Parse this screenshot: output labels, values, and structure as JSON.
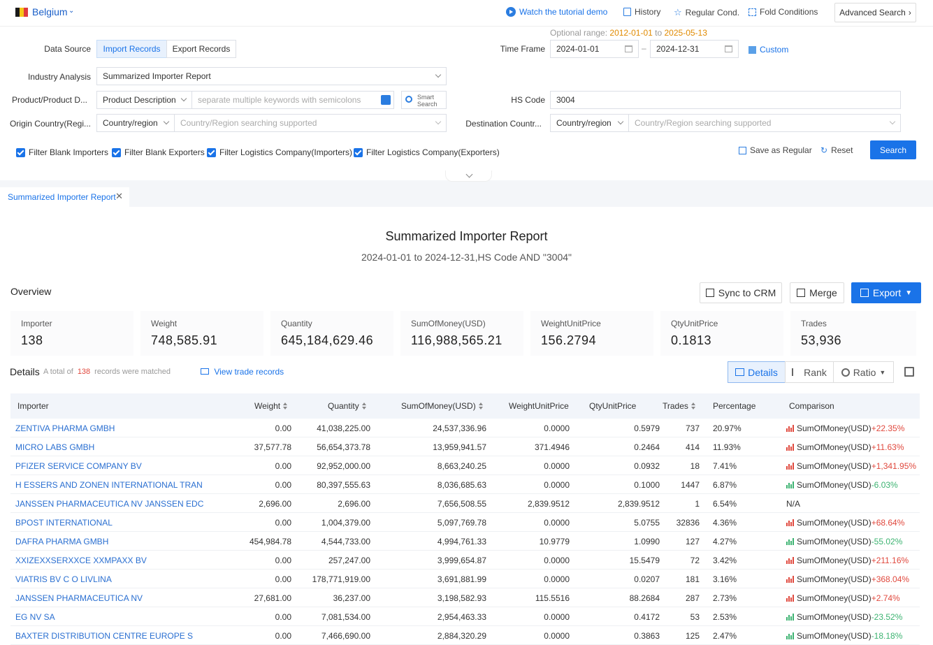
{
  "topbar": {
    "country": "Belgium",
    "flag_colors": [
      "#1a1a1a",
      "#f5c518",
      "#e03a3e"
    ],
    "watch_demo": "Watch the tutorial demo",
    "history": "History",
    "regular_cond": "Regular Cond.",
    "fold_conditions": "Fold Conditions",
    "advanced_search": "Advanced Search"
  },
  "form": {
    "data_source_label": "Data Source",
    "import_records": "Import Records",
    "export_records": "Export Records",
    "optional_range_label": "Optional range:",
    "optional_range_from": "2012-01-01",
    "optional_range_to_word": "to",
    "optional_range_to": "2025-05-13",
    "time_frame_label": "Time Frame",
    "date_from": "2024-01-01",
    "date_to": "2024-12-31",
    "date_sep": "–",
    "custom": "Custom",
    "industry_label": "Industry Analysis",
    "industry_value": "Summarized Importer Report",
    "product_label": "Product/Product D...",
    "product_type": "Product Description",
    "product_placeholder": "separate multiple keywords with semicolons",
    "smart_search_1": "Smart",
    "smart_search_2": "Search",
    "hs_label": "HS Code",
    "hs_value": "3004",
    "origin_label": "Origin Country(Regi...",
    "origin_type": "Country/region",
    "origin_placeholder": "Country/Region searching supported",
    "dest_label": "Destination Countr...",
    "dest_type": "Country/region",
    "dest_placeholder": "Country/Region searching supported",
    "filter1": "Filter Blank Importers",
    "filter2": "Filter Blank Exporters",
    "filter3": "Filter Logistics Company(Importers)",
    "filter4": "Filter Logistics Company(Exporters)",
    "save_regular": "Save as Regular",
    "reset": "Reset",
    "search": "Search"
  },
  "doc_tab": "Summarized Importer Report",
  "report": {
    "title": "Summarized Importer Report",
    "subtitle": "2024-01-01 to 2024-12-31,HS Code AND \"3004\"",
    "overview": "Overview",
    "sync_crm": "Sync to CRM",
    "merge": "Merge",
    "export": "Export"
  },
  "stats": [
    {
      "k": "Importer",
      "v": "138"
    },
    {
      "k": "Weight",
      "v": "748,585.91"
    },
    {
      "k": "Quantity",
      "v": "645,184,629.46"
    },
    {
      "k": "SumOfMoney(USD)",
      "v": "116,988,565.21"
    },
    {
      "k": "WeightUnitPrice",
      "v": "156.2794"
    },
    {
      "k": "QtyUnitPrice",
      "v": "0.1813"
    },
    {
      "k": "Trades",
      "v": "53,936"
    }
  ],
  "details": {
    "label": "Details",
    "total_prefix": "A total of",
    "total_count": "138",
    "total_suffix": "records were matched",
    "view_trade": "View trade records",
    "seg_details": "Details",
    "seg_rank": "Rank",
    "seg_ratio": "Ratio"
  },
  "table": {
    "headers": {
      "importer": "Importer",
      "weight": "Weight",
      "quantity": "Quantity",
      "sum": "SumOfMoney(USD)",
      "wup": "WeightUnitPrice",
      "qup": "QtyUnitPrice",
      "trades": "Trades",
      "pct": "Percentage",
      "cmp": "Comparison"
    },
    "rows": [
      {
        "name": "ZENTIVA PHARMA GMBH",
        "weight": "0.00",
        "qty": "41,038,225.00",
        "sum": "24,537,336.96",
        "wup": "0.0000",
        "qup": "0.5979",
        "trades": "737",
        "pct": "20.97%",
        "cmp_label": "SumOfMoney(USD)",
        "cmp_val": "+22.35%",
        "dir": "up"
      },
      {
        "name": "MICRO LABS GMBH",
        "weight": "37,577.78",
        "qty": "56,654,373.78",
        "sum": "13,959,941.57",
        "wup": "371.4946",
        "qup": "0.2464",
        "trades": "414",
        "pct": "11.93%",
        "cmp_label": "SumOfMoney(USD)",
        "cmp_val": "+11.63%",
        "dir": "up"
      },
      {
        "name": "PFIZER SERVICE COMPANY BV",
        "weight": "0.00",
        "qty": "92,952,000.00",
        "sum": "8,663,240.25",
        "wup": "0.0000",
        "qup": "0.0932",
        "trades": "18",
        "pct": "7.41%",
        "cmp_label": "SumOfMoney(USD)",
        "cmp_val": "+1,341.95%",
        "dir": "up"
      },
      {
        "name": "H ESSERS AND ZONEN INTERNATIONAL TRAN",
        "weight": "0.00",
        "qty": "80,397,555.63",
        "sum": "8,036,685.63",
        "wup": "0.0000",
        "qup": "0.1000",
        "trades": "1447",
        "pct": "6.87%",
        "cmp_label": "SumOfMoney(USD)",
        "cmp_val": "-6.03%",
        "dir": "down"
      },
      {
        "name": "JANSSEN PHARMACEUTICA NV JANSSEN EDC",
        "weight": "2,696.00",
        "qty": "2,696.00",
        "sum": "7,656,508.55",
        "wup": "2,839.9512",
        "qup": "2,839.9512",
        "trades": "1",
        "pct": "6.54%",
        "cmp_label": "N/A",
        "cmp_val": "",
        "dir": "none"
      },
      {
        "name": "BPOST INTERNATIONAL",
        "weight": "0.00",
        "qty": "1,004,379.00",
        "sum": "5,097,769.78",
        "wup": "0.0000",
        "qup": "5.0755",
        "trades": "32836",
        "pct": "4.36%",
        "cmp_label": "SumOfMoney(USD)",
        "cmp_val": "+68.64%",
        "dir": "up"
      },
      {
        "name": "DAFRA PHARMA GMBH",
        "weight": "454,984.78",
        "qty": "4,544,733.00",
        "sum": "4,994,761.33",
        "wup": "10.9779",
        "qup": "1.0990",
        "trades": "127",
        "pct": "4.27%",
        "cmp_label": "SumOfMoney(USD)",
        "cmp_val": "-55.02%",
        "dir": "down"
      },
      {
        "name": "XXIZEXXSERXXCE XXMPAXX BV",
        "weight": "0.00",
        "qty": "257,247.00",
        "sum": "3,999,654.87",
        "wup": "0.0000",
        "qup": "15.5479",
        "trades": "72",
        "pct": "3.42%",
        "cmp_label": "SumOfMoney(USD)",
        "cmp_val": "+211.16%",
        "dir": "up"
      },
      {
        "name": "VIATRIS BV C O LIVLINA",
        "weight": "0.00",
        "qty": "178,771,919.00",
        "sum": "3,691,881.99",
        "wup": "0.0000",
        "qup": "0.0207",
        "trades": "181",
        "pct": "3.16%",
        "cmp_label": "SumOfMoney(USD)",
        "cmp_val": "+368.04%",
        "dir": "up"
      },
      {
        "name": "JANSSEN PHARMACEUTICA NV",
        "weight": "27,681.00",
        "qty": "36,237.00",
        "sum": "3,198,582.93",
        "wup": "115.5516",
        "qup": "88.2684",
        "trades": "287",
        "pct": "2.73%",
        "cmp_label": "SumOfMoney(USD)",
        "cmp_val": "+2.74%",
        "dir": "up"
      },
      {
        "name": "EG NV SA",
        "weight": "0.00",
        "qty": "7,081,534.00",
        "sum": "2,954,463.33",
        "wup": "0.0000",
        "qup": "0.4172",
        "trades": "53",
        "pct": "2.53%",
        "cmp_label": "SumOfMoney(USD)",
        "cmp_val": "-23.52%",
        "dir": "down"
      },
      {
        "name": "BAXTER DISTRIBUTION CENTRE EUROPE S",
        "weight": "0.00",
        "qty": "7,466,690.00",
        "sum": "2,884,320.29",
        "wup": "0.0000",
        "qup": "0.3863",
        "trades": "125",
        "pct": "2.47%",
        "cmp_label": "SumOfMoney(USD)",
        "cmp_val": "-18.18%",
        "dir": "down"
      }
    ]
  },
  "colors": {
    "accent": "#1a73e8",
    "up": "#e0483d",
    "down": "#3cb371"
  }
}
